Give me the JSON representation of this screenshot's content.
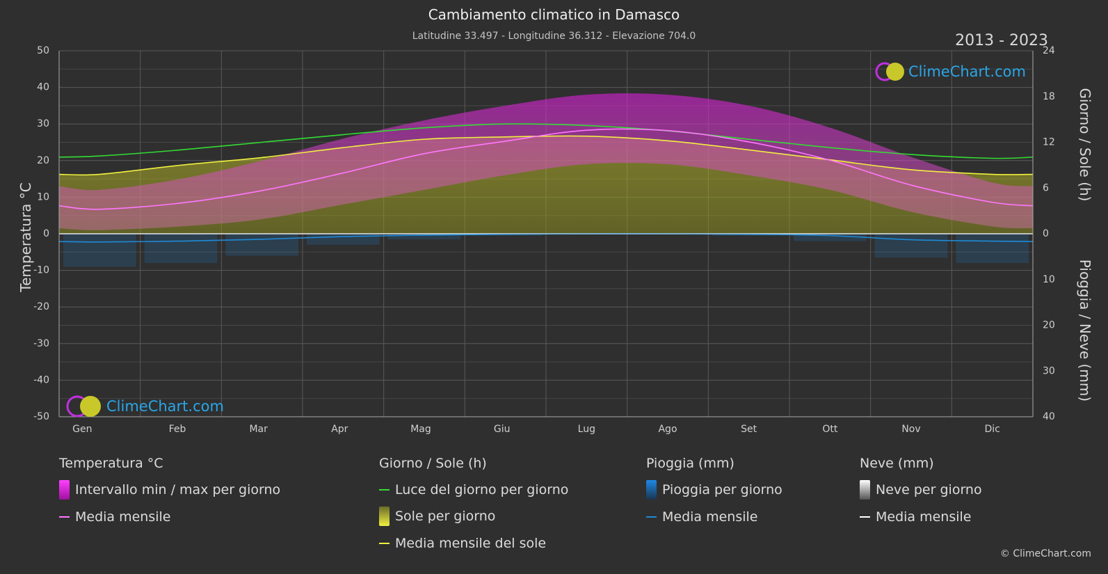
{
  "header": {
    "title": "Cambiamento climatico in Damasco",
    "subtitle": "Latitudine 33.497 - Longitudine 36.312 - Elevazione 704.0",
    "years": "2013 - 2023"
  },
  "axes": {
    "left_label": "Temperatura °C",
    "right_top_label": "Giorno / Sole (h)",
    "right_bottom_label": "Pioggia / Neve (mm)"
  },
  "logo_text": "ClimeChart.com",
  "copyright": "© ClimeChart.com",
  "legend": {
    "temp": {
      "title": "Temperatura °C",
      "range": "Intervallo min / max per giorno",
      "mean": "Media mensile"
    },
    "day": {
      "title": "Giorno / Sole (h)",
      "daylight": "Luce del giorno per giorno",
      "sun": "Sole per giorno",
      "sun_mean": "Media mensile del sole"
    },
    "rain": {
      "title": "Pioggia (mm)",
      "per_day": "Pioggia per giorno",
      "mean": "Media mensile"
    },
    "snow": {
      "title": "Neve (mm)",
      "per_day": "Neve per giorno",
      "mean": "Media mensile"
    }
  },
  "colors": {
    "background": "#2f2f2f",
    "temp_range": "#d020d0",
    "temp_mean": "#ff77ff",
    "daylight": "#33dd33",
    "sun": "#d7d72a",
    "sun_mean": "#f0f040",
    "rain": "#1e88e5",
    "rain_mean": "#1f8ad6",
    "snow": "#f0f0f0",
    "snow_mean": "#ffffff",
    "logo": "#2aa6e8"
  },
  "chart_data": {
    "type": "area",
    "categories": [
      "Gen",
      "Feb",
      "Mar",
      "Apr",
      "Mag",
      "Giu",
      "Lug",
      "Ago",
      "Set",
      "Ott",
      "Nov",
      "Dic"
    ],
    "left_axis": {
      "ticks": [
        50,
        40,
        30,
        20,
        10,
        0,
        -10,
        -20,
        -30,
        -40,
        -50
      ],
      "ylim": [
        -50,
        50
      ]
    },
    "right_top_axis": {
      "ticks": [
        24,
        18,
        12,
        6,
        0
      ],
      "ylim": [
        0,
        24
      ]
    },
    "right_bottom_axis": {
      "ticks": [
        0,
        10,
        20,
        30,
        40
      ],
      "ylim": [
        0,
        40
      ]
    },
    "series": [
      {
        "name": "Luce del giorno per giorno",
        "axis": "hours",
        "values": [
          10.2,
          11.0,
          12.0,
          13.0,
          13.9,
          14.4,
          14.2,
          13.5,
          12.4,
          11.3,
          10.4,
          9.9
        ]
      },
      {
        "name": "Media mensile del sole",
        "axis": "hours",
        "values": [
          7.8,
          9.0,
          10.0,
          11.3,
          12.4,
          12.7,
          12.8,
          12.2,
          11.0,
          9.7,
          8.4,
          7.8
        ]
      },
      {
        "name": "Media mensile",
        "axis": "temperature",
        "values": [
          6.7,
          8.4,
          11.8,
          16.6,
          21.9,
          25.3,
          28.3,
          28.2,
          25.1,
          20.1,
          13.3,
          8.6
        ]
      },
      {
        "name": "Intervallo min / max per giorno",
        "axis": "temperature",
        "min": [
          1,
          2,
          4,
          8,
          12,
          16,
          19,
          19,
          16,
          12,
          6,
          2
        ],
        "max": [
          12,
          15,
          20,
          26,
          31,
          35,
          38,
          38,
          35,
          29,
          21,
          14
        ]
      },
      {
        "name": "Pioggia media mensile",
        "axis": "precip",
        "values": [
          1.8,
          1.6,
          1.2,
          0.6,
          0.3,
          0.1,
          0.0,
          0.0,
          0.1,
          0.4,
          1.3,
          1.6
        ]
      },
      {
        "name": "Neve media mensile",
        "axis": "precip",
        "values": [
          0.0,
          0.0,
          0.0,
          0.0,
          0.0,
          0.0,
          0.0,
          0.0,
          0.0,
          0.0,
          0.0,
          0.0
        ]
      }
    ],
    "grid": true
  }
}
